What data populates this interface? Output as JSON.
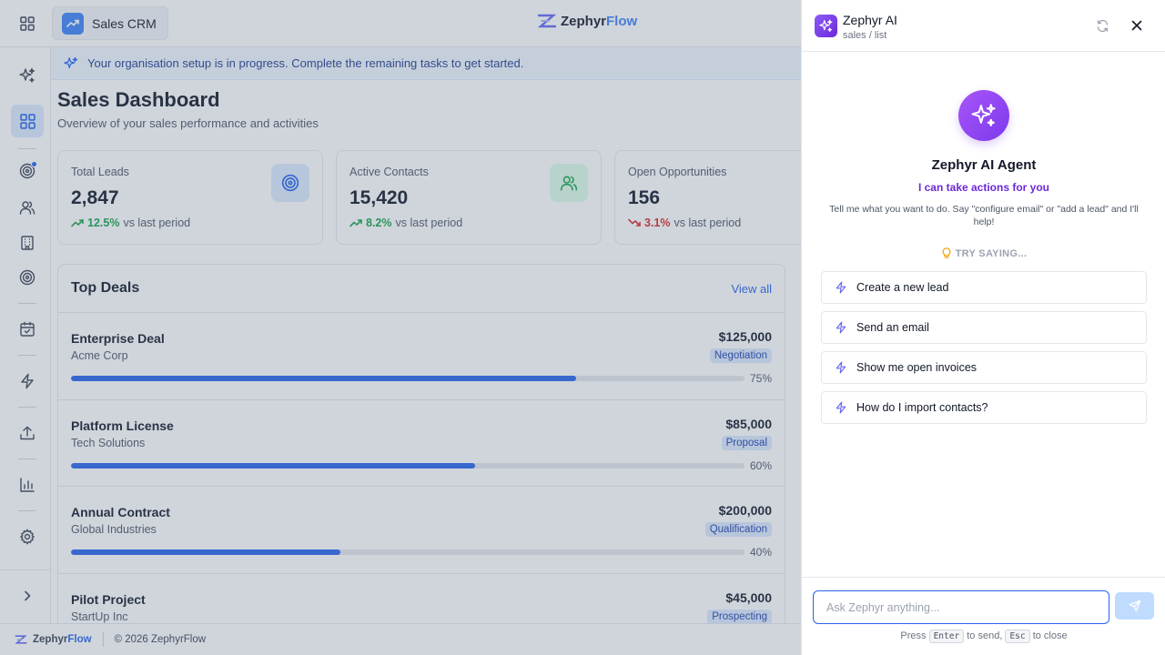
{
  "header": {
    "app_switcher_label": "Sales CRM",
    "brand_part1": "Zephyr",
    "brand_part2": "Flow"
  },
  "sidebar": {
    "items": [
      {
        "icon": "sparkles-icon"
      },
      {
        "icon": "dashboard-icon",
        "active": true
      },
      {
        "icon": "target-icon",
        "badge": true
      },
      {
        "icon": "users-icon"
      },
      {
        "icon": "building-icon"
      },
      {
        "icon": "target-icon"
      },
      {
        "icon": "calendar-check-icon"
      },
      {
        "icon": "lightning-icon"
      },
      {
        "icon": "upload-icon"
      },
      {
        "icon": "bar-chart-icon"
      },
      {
        "icon": "gear-icon"
      },
      {
        "icon": "chevron-right-icon"
      }
    ]
  },
  "banner": {
    "text": "Your organisation setup is in progress. Complete the remaining tasks to get started."
  },
  "main": {
    "title": "Sales Dashboard",
    "subtitle": "Overview of your sales performance and activities",
    "stats": [
      {
        "label": "Total Leads",
        "value": "2,847",
        "change": "12.5%",
        "direction": "up",
        "suffix": "vs last period",
        "icon": "target-icon"
      },
      {
        "label": "Active Contacts",
        "value": "15,420",
        "change": "8.2%",
        "direction": "up",
        "suffix": "vs last period",
        "icon": "users-icon"
      },
      {
        "label": "Open Opportunities",
        "value": "156",
        "change": "3.1%",
        "direction": "down",
        "suffix": "vs last period"
      }
    ],
    "top_deals": {
      "title": "Top Deals",
      "view_all": "View all",
      "deals": [
        {
          "name": "Enterprise Deal",
          "company": "Acme Corp",
          "amount": "$125,000",
          "stage": "Negotiation",
          "progress": 75,
          "progress_label": "75%"
        },
        {
          "name": "Platform License",
          "company": "Tech Solutions",
          "amount": "$85,000",
          "stage": "Proposal",
          "progress": 60,
          "progress_label": "60%"
        },
        {
          "name": "Annual Contract",
          "company": "Global Industries",
          "amount": "$200,000",
          "stage": "Qualification",
          "progress": 40,
          "progress_label": "40%"
        },
        {
          "name": "Pilot Project",
          "company": "StartUp Inc",
          "amount": "$45,000",
          "stage": "Prospecting",
          "progress": 0,
          "progress_label": ""
        }
      ]
    }
  },
  "footer": {
    "brand_part1": "Zephyr",
    "brand_part2": "Flow",
    "copyright": "© 2026 ZephyrFlow"
  },
  "ai_panel": {
    "title": "Zephyr AI",
    "breadcrumb": "sales / list",
    "agent_name": "Zephyr AI Agent",
    "tagline": "I can take actions for you",
    "description": "Tell me what you want to do. Say \"configure email\" or \"add a lead\" and I'll help!",
    "try_saying": "TRY SAYING...",
    "suggestions": [
      "Create a new lead",
      "Send an email",
      "Show me open invoices",
      "How do I import contacts?"
    ],
    "input_placeholder": "Ask Zephyr anything...",
    "hint_press": "Press",
    "hint_enter_key": "Enter",
    "hint_to_send": "to send,",
    "hint_esc_key": "Esc",
    "hint_to_close": "to close"
  },
  "colors": {
    "accent": "#2563eb",
    "purple": "#7c3aed",
    "positive": "#16a34a",
    "negative": "#dc2626"
  }
}
